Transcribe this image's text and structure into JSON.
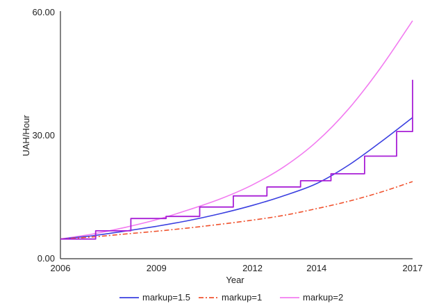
{
  "chart_data": {
    "type": "line",
    "title": "",
    "xlabel": "Year",
    "ylabel": "UAH/Hour",
    "xlim": [
      2006,
      2017
    ],
    "ylim": [
      0,
      60
    ],
    "x_ticks": [
      2006,
      2009,
      2012,
      2014,
      2017
    ],
    "y_ticks": [
      0,
      30,
      60
    ],
    "y_tick_labels": [
      "0.00",
      "30.00",
      "60.00"
    ],
    "grid": false,
    "legend_position": "bottom",
    "series": [
      {
        "name": "markup=1.5",
        "color": "#3a3fe0",
        "style": "solid",
        "x": [
          2006,
          2007,
          2008,
          2009,
          2010,
          2011,
          2012,
          2013,
          2014,
          2015,
          2016,
          2017
        ],
        "y": [
          4.8,
          5.6,
          6.7,
          7.9,
          9.3,
          11.0,
          13.0,
          15.4,
          18.3,
          22.8,
          28.4,
          34.4
        ]
      },
      {
        "name": "markup=1",
        "color": "#f0522e",
        "style": "dashdot",
        "x": [
          2006,
          2007,
          2008,
          2009,
          2010,
          2011,
          2012,
          2013,
          2014,
          2015,
          2016,
          2017
        ],
        "y": [
          4.8,
          5.3,
          6.0,
          6.7,
          7.5,
          8.4,
          9.4,
          10.6,
          12.2,
          14.0,
          16.2,
          18.8
        ]
      },
      {
        "name": "markup=2",
        "color": "#f27bf0",
        "style": "solid",
        "x": [
          2006,
          2007,
          2008,
          2009,
          2010,
          2011,
          2012,
          2013,
          2014,
          2015,
          2016,
          2017
        ],
        "y": [
          4.8,
          6.0,
          7.6,
          9.5,
          11.9,
          14.6,
          18.0,
          22.5,
          28.5,
          36.5,
          46.5,
          58.0
        ]
      },
      {
        "name": "",
        "color": "#a81fd6",
        "style": "step",
        "x": [
          2006,
          2007.1,
          2008.2,
          2009.3,
          2010.35,
          2011.4,
          2012.45,
          2013.5,
          2014.45,
          2015.5,
          2016.5,
          2017
        ],
        "y": [
          4.8,
          6.8,
          9.8,
          10.3,
          12.6,
          15.3,
          17.5,
          19.0,
          20.7,
          25.0,
          31.0,
          43.6
        ]
      }
    ]
  }
}
